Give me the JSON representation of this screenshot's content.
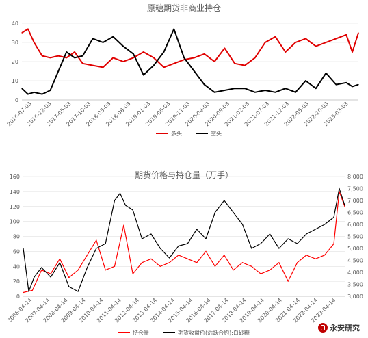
{
  "watermark": {
    "text": "永安研究",
    "icon": "yongan-logo-icon"
  },
  "chart_data": [
    {
      "type": "line",
      "title": "原糖期货非商业持仓",
      "xlabel": "",
      "ylabel": "",
      "ylim": [
        0,
        40
      ],
      "yticks": [
        0,
        10,
        20,
        30,
        40
      ],
      "grid": true,
      "legend_position": "bottom",
      "x_tick_labels": [
        "2016-07-03",
        "2016-12-03",
        "2017-05-03",
        "2017-10-03",
        "2018-03-03",
        "2018-08-03",
        "2019-01-03",
        "2019-06-03",
        "2019-11-03",
        "2020-04-03",
        "2020-09-03",
        "2021-02-03",
        "2021-07-03",
        "2021-12-03",
        "2022-05-03",
        "2022-10-03",
        "2023-03-03"
      ],
      "series": [
        {
          "name": "多头",
          "color": "#e00000",
          "x": [
            0,
            0.3,
            0.6,
            1.0,
            1.4,
            1.8,
            2.2,
            2.6,
            3.0,
            3.5,
            4.0,
            4.5,
            5.0,
            5.5,
            6.0,
            6.5,
            7.0,
            7.5,
            8.0,
            8.5,
            9.0,
            9.5,
            10.0,
            10.5,
            11.0,
            11.5,
            12.0,
            12.5,
            13.0,
            13.5,
            14.0,
            14.5,
            15.0,
            15.5,
            16.0,
            16.3,
            16.6
          ],
          "values": [
            35,
            37,
            30,
            23,
            22,
            23,
            22,
            25,
            19,
            18,
            17,
            22,
            20,
            22,
            25,
            22,
            17,
            19,
            21,
            22,
            24,
            20,
            27,
            19,
            18,
            22,
            30,
            33,
            25,
            30,
            32,
            28,
            30,
            32,
            34,
            25,
            35
          ]
        },
        {
          "name": "空头",
          "color": "#000000",
          "x": [
            0,
            0.3,
            0.6,
            1.0,
            1.4,
            1.8,
            2.2,
            2.6,
            3.0,
            3.5,
            4.0,
            4.5,
            5.0,
            5.5,
            6.0,
            6.5,
            7.0,
            7.5,
            8.0,
            8.5,
            9.0,
            9.5,
            10.0,
            10.5,
            11.0,
            11.5,
            12.0,
            12.5,
            13.0,
            13.5,
            14.0,
            14.5,
            15.0,
            15.5,
            16.0,
            16.3,
            16.6
          ],
          "values": [
            6,
            3,
            4,
            3,
            5,
            15,
            25,
            22,
            23,
            32,
            30,
            33,
            28,
            24,
            13,
            18,
            25,
            37,
            22,
            15,
            8,
            4,
            5,
            6,
            6,
            4,
            5,
            4,
            6,
            4,
            10,
            6,
            14,
            8,
            9,
            7,
            8
          ]
        }
      ]
    },
    {
      "type": "line",
      "title": "期货价格与持仓量（万手）",
      "xlabel": "",
      "ylabel": "",
      "ylim": [
        0,
        160
      ],
      "yticks": [
        0,
        20,
        40,
        60,
        80,
        100,
        120,
        140,
        160
      ],
      "ylim_right": [
        3000,
        8000
      ],
      "yticks_right": [
        "3,000",
        "3,500",
        "4,000",
        "4,500",
        "5,000",
        "5,500",
        "6,000",
        "6,500",
        "7,000",
        "7,500",
        "8,000"
      ],
      "grid": true,
      "legend_position": "bottom",
      "x_tick_labels": [
        "2006-04-14",
        "2007-04-14",
        "2008-04-14",
        "2009-04-14",
        "2010-04-14",
        "2011-04-14",
        "2012-04-14",
        "2013-04-14",
        "2014-04-14",
        "2015-04-14",
        "2016-04-14",
        "2017-04-14",
        "2018-04-14",
        "2019-04-14",
        "2020-04-14",
        "2021-04-14",
        "2022-04-14",
        "2023-04-14"
      ],
      "series": [
        {
          "name": "持仓量",
          "color": "#ff0000",
          "axis": "left",
          "x": [
            0,
            0.5,
            1.0,
            1.5,
            2.0,
            2.5,
            3.0,
            3.5,
            4.0,
            4.5,
            5.0,
            5.5,
            6.0,
            6.5,
            7.0,
            7.5,
            8.0,
            8.5,
            9.0,
            9.5,
            10.0,
            10.5,
            11.0,
            11.5,
            12.0,
            12.5,
            13.0,
            13.5,
            14.0,
            14.5,
            15.0,
            15.5,
            16.0,
            16.5,
            17.0,
            17.3,
            17.6
          ],
          "values": [
            5,
            8,
            35,
            30,
            50,
            25,
            35,
            55,
            75,
            35,
            40,
            95,
            30,
            45,
            50,
            40,
            45,
            55,
            50,
            45,
            60,
            40,
            55,
            35,
            45,
            40,
            30,
            35,
            45,
            20,
            45,
            55,
            50,
            55,
            70,
            140,
            120
          ]
        },
        {
          "name": "期货收盘价(活跃合约):白砂糖",
          "color": "#000000",
          "axis": "right",
          "x": [
            0,
            0.3,
            0.6,
            1.0,
            1.5,
            2.0,
            2.5,
            3.0,
            3.5,
            4.0,
            4.5,
            5.0,
            5.3,
            5.6,
            6.0,
            6.5,
            7.0,
            7.5,
            8.0,
            8.5,
            9.0,
            9.5,
            10.0,
            10.5,
            11.0,
            11.5,
            12.0,
            12.5,
            13.0,
            13.5,
            14.0,
            14.5,
            15.0,
            15.5,
            16.0,
            16.5,
            17.0,
            17.3,
            17.6
          ],
          "values": [
            5000,
            3200,
            3800,
            4200,
            3800,
            4400,
            3400,
            3200,
            4200,
            5000,
            5200,
            7000,
            7300,
            6800,
            6600,
            5400,
            5600,
            5000,
            4600,
            5100,
            5200,
            5800,
            5400,
            6500,
            7000,
            6500,
            6000,
            5000,
            5200,
            5600,
            5000,
            5400,
            5200,
            5600,
            5800,
            6000,
            6300,
            7500,
            6800
          ]
        }
      ]
    }
  ]
}
